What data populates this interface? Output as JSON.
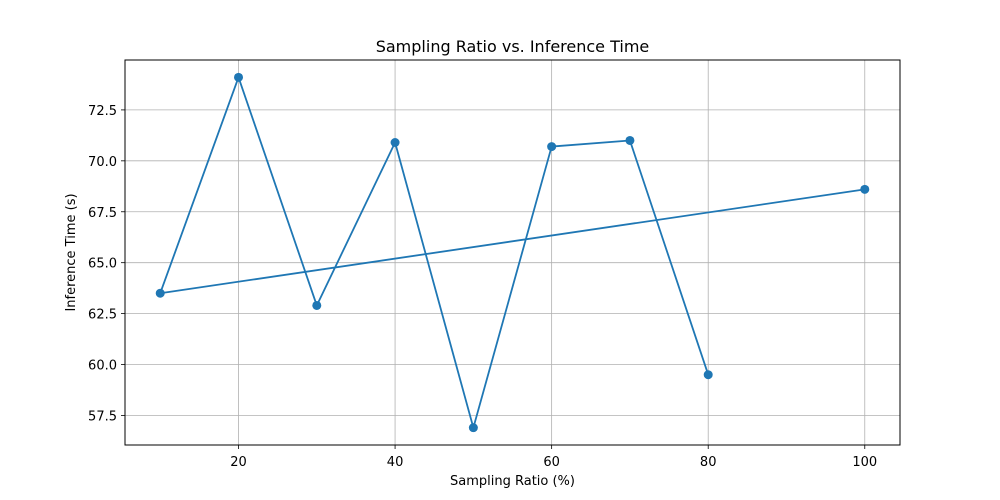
{
  "chart_data": {
    "type": "line",
    "title": "Sampling Ratio vs. Inference Time",
    "xlabel": "Sampling Ratio (%)",
    "ylabel": "Inference Time (s)",
    "xlim": [
      5.5,
      104.5
    ],
    "ylim": [
      56.05,
      74.95
    ],
    "xticks": [
      20,
      40,
      60,
      80,
      100
    ],
    "yticks": [
      57.5,
      60.0,
      62.5,
      65.0,
      67.5,
      70.0,
      72.5
    ],
    "grid": true,
    "series": [
      {
        "color": "#1f77b4",
        "marker": "circle",
        "points": [
          {
            "x": 100,
            "y": 68.6
          },
          {
            "x": 10,
            "y": 63.5
          },
          {
            "x": 20,
            "y": 74.1
          },
          {
            "x": 30,
            "y": 62.9
          },
          {
            "x": 40,
            "y": 70.9
          },
          {
            "x": 50,
            "y": 56.9
          },
          {
            "x": 60,
            "y": 70.7
          },
          {
            "x": 70,
            "y": 71.0
          },
          {
            "x": 80,
            "y": 59.5
          }
        ]
      }
    ]
  }
}
